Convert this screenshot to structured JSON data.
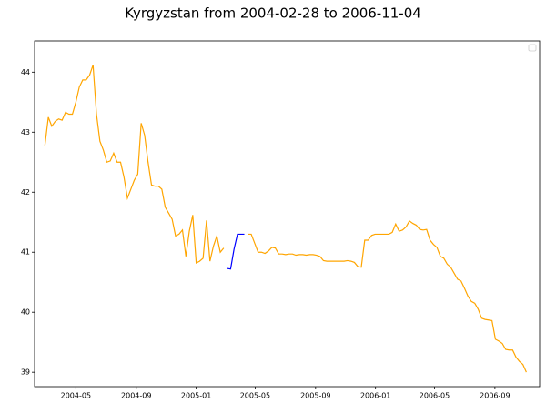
{
  "chart_data": {
    "type": "line",
    "title": "Kyrgyzstan from 2004-02-28 to 2006-11-04",
    "x": [
      "2004-02-28",
      "2004-03-06",
      "2004-03-13",
      "2004-03-20",
      "2004-03-27",
      "2004-04-03",
      "2004-04-10",
      "2004-04-17",
      "2004-04-24",
      "2004-05-01",
      "2004-05-08",
      "2004-05-15",
      "2004-05-22",
      "2004-05-29",
      "2004-06-05",
      "2004-06-12",
      "2004-06-19",
      "2004-06-26",
      "2004-07-03",
      "2004-07-10",
      "2004-07-17",
      "2004-07-24",
      "2004-07-31",
      "2004-08-07",
      "2004-08-14",
      "2004-08-21",
      "2004-08-28",
      "2004-09-04",
      "2004-09-11",
      "2004-09-18",
      "2004-09-25",
      "2004-10-02",
      "2004-10-09",
      "2004-10-16",
      "2004-10-23",
      "2004-10-30",
      "2004-11-06",
      "2004-11-13",
      "2004-11-20",
      "2004-11-27",
      "2004-12-04",
      "2004-12-11",
      "2004-12-18",
      "2004-12-25",
      "2005-01-01",
      "2005-01-08",
      "2005-01-15",
      "2005-01-22",
      "2005-01-29",
      "2005-02-05",
      "2005-02-12",
      "2005-02-19",
      "2005-02-26",
      "2005-03-05",
      "2005-03-12",
      "2005-03-19",
      "2005-03-26",
      "2005-04-02",
      "2005-04-09",
      "2005-04-16",
      "2005-04-23",
      "2005-04-30",
      "2005-05-07",
      "2005-05-14",
      "2005-05-21",
      "2005-05-28",
      "2005-06-04",
      "2005-06-11",
      "2005-06-18",
      "2005-06-25",
      "2005-07-02",
      "2005-07-09",
      "2005-07-16",
      "2005-07-23",
      "2005-07-30",
      "2005-08-06",
      "2005-08-13",
      "2005-08-20",
      "2005-08-27",
      "2005-09-03",
      "2005-09-10",
      "2005-09-17",
      "2005-09-24",
      "2005-10-01",
      "2005-10-08",
      "2005-10-15",
      "2005-10-22",
      "2005-10-29",
      "2005-11-05",
      "2005-11-12",
      "2005-11-19",
      "2005-11-26",
      "2005-12-03",
      "2005-12-10",
      "2005-12-17",
      "2005-12-24",
      "2005-12-31",
      "2006-01-07",
      "2006-01-14",
      "2006-01-21",
      "2006-01-28",
      "2006-02-04",
      "2006-02-11",
      "2006-02-18",
      "2006-02-25",
      "2006-03-04",
      "2006-03-11",
      "2006-03-18",
      "2006-03-25",
      "2006-04-01",
      "2006-04-08",
      "2006-04-15",
      "2006-04-22",
      "2006-04-29",
      "2006-05-06",
      "2006-05-13",
      "2006-05-20",
      "2006-05-27",
      "2006-06-03",
      "2006-06-10",
      "2006-06-17",
      "2006-06-24",
      "2006-07-01",
      "2006-07-08",
      "2006-07-15",
      "2006-07-22",
      "2006-07-29",
      "2006-08-05",
      "2006-08-12",
      "2006-08-19",
      "2006-08-26",
      "2006-09-02",
      "2006-09-09",
      "2006-09-16",
      "2006-09-23",
      "2006-09-30",
      "2006-10-07",
      "2006-10-14",
      "2006-10-21",
      "2006-10-28",
      "2006-11-04"
    ],
    "series": [
      {
        "color": "#ffa500",
        "values": [
          42.78,
          43.25,
          43.1,
          43.18,
          43.22,
          43.2,
          43.33,
          43.3,
          43.3,
          43.5,
          43.75,
          43.87,
          43.87,
          43.95,
          44.12,
          43.3,
          42.85,
          42.7,
          42.5,
          42.52,
          42.65,
          42.5,
          42.5,
          42.25,
          41.9,
          42.05,
          42.2,
          42.3,
          43.15,
          42.95,
          42.5,
          42.12,
          42.1,
          42.1,
          42.05,
          41.75,
          41.65,
          41.55,
          41.27,
          41.3,
          41.37,
          40.93,
          41.35,
          41.62,
          40.82,
          40.85,
          40.9,
          41.53,
          40.85,
          41.1,
          41.27,
          41.0,
          41.07,
          null,
          null,
          null,
          null,
          null,
          null,
          41.3,
          41.3,
          41.15,
          41.0,
          41.0,
          40.98,
          41.02,
          41.08,
          41.07,
          40.97,
          40.97,
          40.96,
          40.97,
          40.97,
          40.95,
          40.96,
          40.96,
          40.95,
          40.96,
          40.96,
          40.95,
          40.93,
          40.86,
          40.85,
          40.85,
          40.85,
          40.85,
          40.85,
          40.85,
          40.86,
          40.85,
          40.83,
          40.76,
          40.75,
          41.2,
          41.2,
          41.28,
          41.3,
          41.3,
          41.3,
          41.3,
          41.3,
          41.33,
          41.47,
          41.35,
          41.37,
          41.42,
          41.52,
          41.48,
          41.45,
          41.38,
          41.37,
          41.38,
          41.2,
          41.13,
          41.08,
          40.93,
          40.9,
          40.8,
          40.75,
          40.65,
          40.55,
          40.52,
          40.4,
          40.27,
          40.18,
          40.15,
          40.05,
          39.9,
          39.88,
          39.87,
          39.86,
          39.55,
          39.52,
          39.48,
          39.38,
          39.37,
          39.37,
          39.25,
          39.18,
          39.13,
          39.0
        ]
      },
      {
        "color": "#0000ff",
        "values": [
          null,
          null,
          null,
          null,
          null,
          null,
          null,
          null,
          null,
          null,
          null,
          null,
          null,
          null,
          null,
          null,
          null,
          null,
          null,
          null,
          null,
          null,
          null,
          null,
          null,
          null,
          null,
          null,
          null,
          null,
          null,
          null,
          null,
          null,
          null,
          null,
          null,
          null,
          null,
          null,
          null,
          null,
          null,
          null,
          null,
          null,
          null,
          null,
          null,
          null,
          null,
          null,
          null,
          40.73,
          40.72,
          41.05,
          41.3,
          41.3,
          41.3,
          null,
          null,
          null,
          null,
          null,
          null,
          null,
          null,
          null,
          null,
          null,
          null,
          null,
          null,
          null,
          null,
          null,
          null,
          null,
          null,
          null,
          null,
          null,
          null,
          null,
          null,
          null,
          null,
          null,
          null,
          null,
          null,
          null,
          null,
          null,
          null,
          null,
          null,
          null,
          null,
          null,
          null,
          null,
          null,
          null,
          null,
          null,
          null,
          null,
          null,
          null,
          null,
          null,
          null,
          null,
          null,
          null,
          null,
          null,
          null,
          null,
          null,
          null,
          null,
          null,
          null,
          null,
          null,
          null,
          null,
          null,
          null,
          null,
          null,
          null,
          null,
          null,
          null,
          null,
          null,
          null,
          null
        ]
      }
    ],
    "xlim": [
      "2004-02-07",
      "2006-12-01"
    ],
    "xticks": [
      {
        "value": "2004-05-01",
        "label": "2004-05"
      },
      {
        "value": "2004-09-01",
        "label": "2004-09"
      },
      {
        "value": "2005-01-01",
        "label": "2005-01"
      },
      {
        "value": "2005-05-01",
        "label": "2005-05"
      },
      {
        "value": "2005-09-01",
        "label": "2005-09"
      },
      {
        "value": "2006-01-01",
        "label": "2006-01"
      },
      {
        "value": "2006-05-01",
        "label": "2006-05"
      },
      {
        "value": "2006-09-01",
        "label": "2006-09"
      }
    ],
    "ylim": [
      38.76,
      44.52
    ],
    "yticks": [
      39,
      40,
      41,
      42,
      43,
      44
    ],
    "legend": "upper right"
  }
}
